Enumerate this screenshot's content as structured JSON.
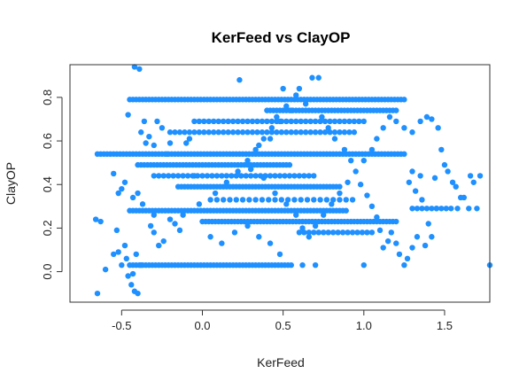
{
  "chart_data": {
    "type": "scatter",
    "title": "KerFeed vs ClayOP",
    "xlabel": "KerFeed",
    "ylabel": "ClayOP",
    "xlim": [
      -0.82,
      1.78
    ],
    "ylim": [
      -0.14,
      0.95
    ],
    "xticks": [
      -0.5,
      0.0,
      0.5,
      1.0,
      1.5
    ],
    "xtick_labels": [
      "-0.5",
      "0.0",
      "0.5",
      "1.0",
      "1.5"
    ],
    "yticks": [
      0.0,
      0.2,
      0.4,
      0.6,
      0.8
    ],
    "ytick_labels": [
      "0.0",
      "0.2",
      "0.4",
      "0.6",
      "0.8"
    ],
    "grid": false,
    "marker_color": "#1E90FF",
    "bands": [
      {
        "y": 0.03,
        "x_from": -0.45,
        "x_to": 0.55,
        "step": 0.02
      },
      {
        "y": 0.23,
        "x_from": 0.0,
        "x_to": 1.2,
        "step": 0.02
      },
      {
        "y": 0.28,
        "x_from": -0.45,
        "x_to": 0.9,
        "step": 0.02
      },
      {
        "y": 0.29,
        "x_from": 1.3,
        "x_to": 1.55,
        "step": 0.03
      },
      {
        "y": 0.39,
        "x_from": -0.15,
        "x_to": 0.85,
        "step": 0.02
      },
      {
        "y": 0.44,
        "x_from": -0.3,
        "x_to": 0.7,
        "step": 0.03
      },
      {
        "y": 0.49,
        "x_from": -0.4,
        "x_to": 0.55,
        "step": 0.02
      },
      {
        "y": 0.54,
        "x_from": -0.65,
        "x_to": 1.25,
        "step": 0.02
      },
      {
        "y": 0.64,
        "x_from": -0.2,
        "x_to": 0.95,
        "step": 0.03
      },
      {
        "y": 0.69,
        "x_from": -0.05,
        "x_to": 1.0,
        "step": 0.03
      },
      {
        "y": 0.74,
        "x_from": 0.4,
        "x_to": 1.2,
        "step": 0.02
      },
      {
        "y": 0.79,
        "x_from": -0.45,
        "x_to": 1.25,
        "step": 0.02
      },
      {
        "y": 0.18,
        "x_from": 0.6,
        "x_to": 1.05,
        "step": 0.03
      },
      {
        "y": 0.33,
        "x_from": 0.05,
        "x_to": 0.95,
        "step": 0.04
      }
    ],
    "points": [
      {
        "x": -0.65,
        "y": -0.1
      },
      {
        "x": -0.66,
        "y": 0.24
      },
      {
        "x": -0.63,
        "y": 0.23
      },
      {
        "x": -0.6,
        "y": 0.01
      },
      {
        "x": -0.55,
        "y": 0.08
      },
      {
        "x": -0.52,
        "y": 0.09
      },
      {
        "x": -0.53,
        "y": 0.19
      },
      {
        "x": -0.5,
        "y": 0.03
      },
      {
        "x": -0.47,
        "y": 0.06
      },
      {
        "x": -0.46,
        "y": -0.02
      },
      {
        "x": -0.44,
        "y": -0.06
      },
      {
        "x": -0.42,
        "y": -0.09
      },
      {
        "x": -0.4,
        "y": -0.1
      },
      {
        "x": -0.43,
        "y": -0.01
      },
      {
        "x": -0.41,
        "y": 0.08
      },
      {
        "x": -0.38,
        "y": 0.03
      },
      {
        "x": -0.48,
        "y": 0.12
      },
      {
        "x": -0.5,
        "y": 0.38
      },
      {
        "x": -0.52,
        "y": 0.36
      },
      {
        "x": -0.48,
        "y": 0.41
      },
      {
        "x": -0.46,
        "y": 0.72
      },
      {
        "x": -0.42,
        "y": 0.94
      },
      {
        "x": -0.39,
        "y": 0.93
      },
      {
        "x": -0.36,
        "y": 0.69
      },
      {
        "x": -0.38,
        "y": 0.64
      },
      {
        "x": -0.33,
        "y": 0.62
      },
      {
        "x": -0.35,
        "y": 0.59
      },
      {
        "x": -0.3,
        "y": 0.58
      },
      {
        "x": -0.28,
        "y": 0.69
      },
      {
        "x": -0.25,
        "y": 0.66
      },
      {
        "x": -0.22,
        "y": 0.54
      },
      {
        "x": -0.2,
        "y": 0.59
      },
      {
        "x": -0.55,
        "y": 0.45
      },
      {
        "x": -0.43,
        "y": 0.34
      },
      {
        "x": -0.4,
        "y": 0.36
      },
      {
        "x": -0.37,
        "y": 0.31
      },
      {
        "x": -0.32,
        "y": 0.21
      },
      {
        "x": -0.3,
        "y": 0.18
      },
      {
        "x": -0.3,
        "y": 0.26
      },
      {
        "x": -0.27,
        "y": 0.12
      },
      {
        "x": -0.24,
        "y": 0.14
      },
      {
        "x": -0.2,
        "y": 0.24
      },
      {
        "x": -0.17,
        "y": 0.22
      },
      {
        "x": -0.14,
        "y": 0.19
      },
      {
        "x": -0.12,
        "y": 0.26
      },
      {
        "x": -0.1,
        "y": 0.59
      },
      {
        "x": -0.08,
        "y": 0.61
      },
      {
        "x": -0.05,
        "y": 0.44
      },
      {
        "x": 0.23,
        "y": 0.88
      },
      {
        "x": 0.5,
        "y": 0.84
      },
      {
        "x": 0.68,
        "y": 0.89
      },
      {
        "x": 0.72,
        "y": 0.89
      },
      {
        "x": 0.6,
        "y": 0.84
      },
      {
        "x": 0.55,
        "y": 0.74
      },
      {
        "x": 0.48,
        "y": 0.69
      },
      {
        "x": 0.42,
        "y": 0.61
      },
      {
        "x": 0.35,
        "y": 0.58
      },
      {
        "x": 0.3,
        "y": 0.47
      },
      {
        "x": 0.38,
        "y": 0.43
      },
      {
        "x": 0.45,
        "y": 0.36
      },
      {
        "x": 0.52,
        "y": 0.31
      },
      {
        "x": 0.58,
        "y": 0.26
      },
      {
        "x": 0.62,
        "y": 0.2
      },
      {
        "x": 0.66,
        "y": 0.16
      },
      {
        "x": 0.7,
        "y": 0.21
      },
      {
        "x": 0.75,
        "y": 0.26
      },
      {
        "x": 0.8,
        "y": 0.31
      },
      {
        "x": 0.85,
        "y": 0.36
      },
      {
        "x": 0.9,
        "y": 0.41
      },
      {
        "x": 0.95,
        "y": 0.46
      },
      {
        "x": 1.0,
        "y": 0.51
      },
      {
        "x": 1.05,
        "y": 0.56
      },
      {
        "x": 1.08,
        "y": 0.61
      },
      {
        "x": 1.12,
        "y": 0.66
      },
      {
        "x": 1.16,
        "y": 0.71
      },
      {
        "x": 1.2,
        "y": 0.69
      },
      {
        "x": 1.25,
        "y": 0.66
      },
      {
        "x": 1.3,
        "y": 0.64
      },
      {
        "x": 1.35,
        "y": 0.69
      },
      {
        "x": 1.39,
        "y": 0.71
      },
      {
        "x": 1.42,
        "y": 0.7
      },
      {
        "x": 1.46,
        "y": 0.66
      },
      {
        "x": 1.48,
        "y": 0.56
      },
      {
        "x": 1.5,
        "y": 0.49
      },
      {
        "x": 1.52,
        "y": 0.46
      },
      {
        "x": 1.55,
        "y": 0.41
      },
      {
        "x": 1.57,
        "y": 0.39
      },
      {
        "x": 1.6,
        "y": 0.34
      },
      {
        "x": 1.62,
        "y": 0.34
      },
      {
        "x": 1.58,
        "y": 0.29
      },
      {
        "x": 1.65,
        "y": 0.29
      },
      {
        "x": 1.66,
        "y": 0.44
      },
      {
        "x": 1.68,
        "y": 0.41
      },
      {
        "x": 1.7,
        "y": 0.29
      },
      {
        "x": 1.72,
        "y": 0.44
      },
      {
        "x": 1.78,
        "y": 0.03
      },
      {
        "x": 1.4,
        "y": 0.22
      },
      {
        "x": 1.42,
        "y": 0.16
      },
      {
        "x": 1.38,
        "y": 0.12
      },
      {
        "x": 1.33,
        "y": 0.16
      },
      {
        "x": 1.3,
        "y": 0.11
      },
      {
        "x": 1.27,
        "y": 0.06
      },
      {
        "x": 1.25,
        "y": 0.03
      },
      {
        "x": 1.22,
        "y": 0.08
      },
      {
        "x": 1.2,
        "y": 0.13
      },
      {
        "x": 1.17,
        "y": 0.18
      },
      {
        "x": 1.15,
        "y": 0.14
      },
      {
        "x": 1.12,
        "y": 0.11
      },
      {
        "x": 1.1,
        "y": 0.19
      },
      {
        "x": 1.08,
        "y": 0.25
      },
      {
        "x": 1.05,
        "y": 0.3
      },
      {
        "x": 1.02,
        "y": 0.35
      },
      {
        "x": 1.0,
        "y": 0.03
      },
      {
        "x": 0.98,
        "y": 0.4
      },
      {
        "x": 0.7,
        "y": 0.03
      },
      {
        "x": 0.62,
        "y": 0.03
      },
      {
        "x": 0.48,
        "y": 0.08
      },
      {
        "x": 0.42,
        "y": 0.13
      },
      {
        "x": 0.35,
        "y": 0.16
      },
      {
        "x": 0.28,
        "y": 0.21
      },
      {
        "x": 0.2,
        "y": 0.18
      },
      {
        "x": 0.12,
        "y": 0.13
      },
      {
        "x": 0.05,
        "y": 0.16
      },
      {
        "x": -0.02,
        "y": 0.31
      },
      {
        "x": 0.08,
        "y": 0.36
      },
      {
        "x": 0.15,
        "y": 0.41
      },
      {
        "x": 0.22,
        "y": 0.46
      },
      {
        "x": 0.28,
        "y": 0.51
      },
      {
        "x": 0.33,
        "y": 0.56
      },
      {
        "x": 0.38,
        "y": 0.61
      },
      {
        "x": 0.43,
        "y": 0.66
      },
      {
        "x": 0.46,
        "y": 0.71
      },
      {
        "x": 0.52,
        "y": 0.76
      },
      {
        "x": 0.58,
        "y": 0.81
      },
      {
        "x": 0.64,
        "y": 0.77
      },
      {
        "x": 0.74,
        "y": 0.71
      },
      {
        "x": 0.78,
        "y": 0.66
      },
      {
        "x": 0.82,
        "y": 0.61
      },
      {
        "x": 0.88,
        "y": 0.56
      },
      {
        "x": 0.92,
        "y": 0.51
      },
      {
        "x": 1.3,
        "y": 0.46
      },
      {
        "x": 1.35,
        "y": 0.44
      },
      {
        "x": 1.44,
        "y": 0.43
      },
      {
        "x": 1.28,
        "y": 0.41
      },
      {
        "x": 1.32,
        "y": 0.37
      },
      {
        "x": 1.36,
        "y": 0.33
      },
      {
        "x": 1.45,
        "y": 0.29
      }
    ]
  }
}
